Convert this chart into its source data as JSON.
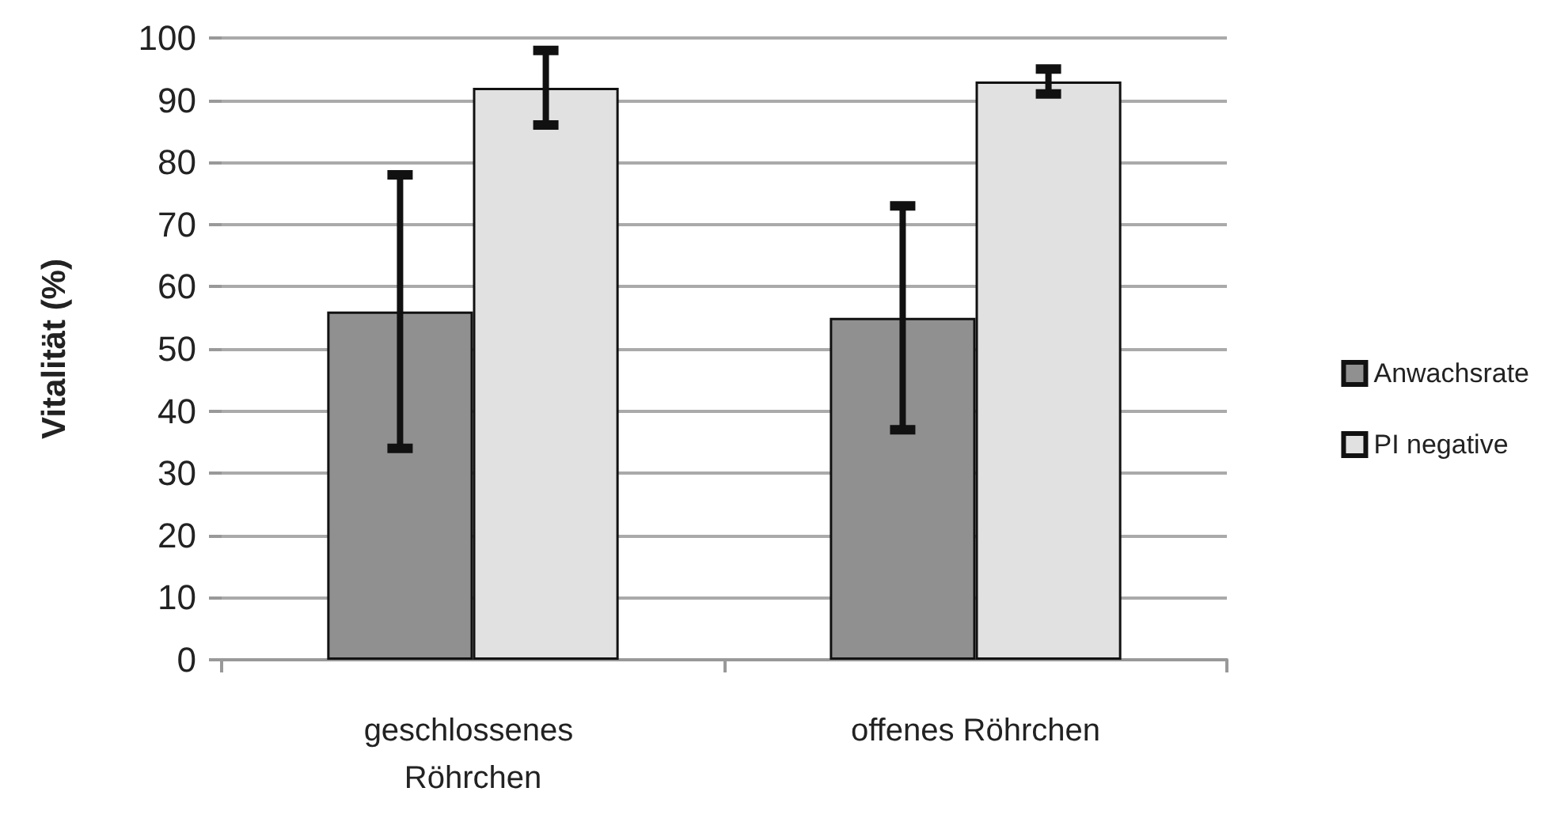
{
  "chart_data": {
    "type": "bar",
    "ylabel": "Vitalität (%)",
    "categories": [
      "geschlossenes Röhrchen",
      "offenes Röhrchen"
    ],
    "series": [
      {
        "name": "Anwachsrate",
        "color": "#909090",
        "values": [
          56,
          55
        ],
        "errors": [
          [
            34,
            78
          ],
          [
            37,
            73
          ]
        ]
      },
      {
        "name": "PI negative",
        "color": "#e0e1e0",
        "values": [
          92,
          93
        ],
        "errors": [
          [
            86,
            98
          ],
          [
            91,
            95
          ]
        ]
      }
    ],
    "ylim": [
      0,
      100
    ],
    "yticks": [
      0,
      10,
      20,
      30,
      40,
      50,
      60,
      70,
      80,
      90,
      100
    ],
    "grid": "y",
    "legend": "right"
  }
}
